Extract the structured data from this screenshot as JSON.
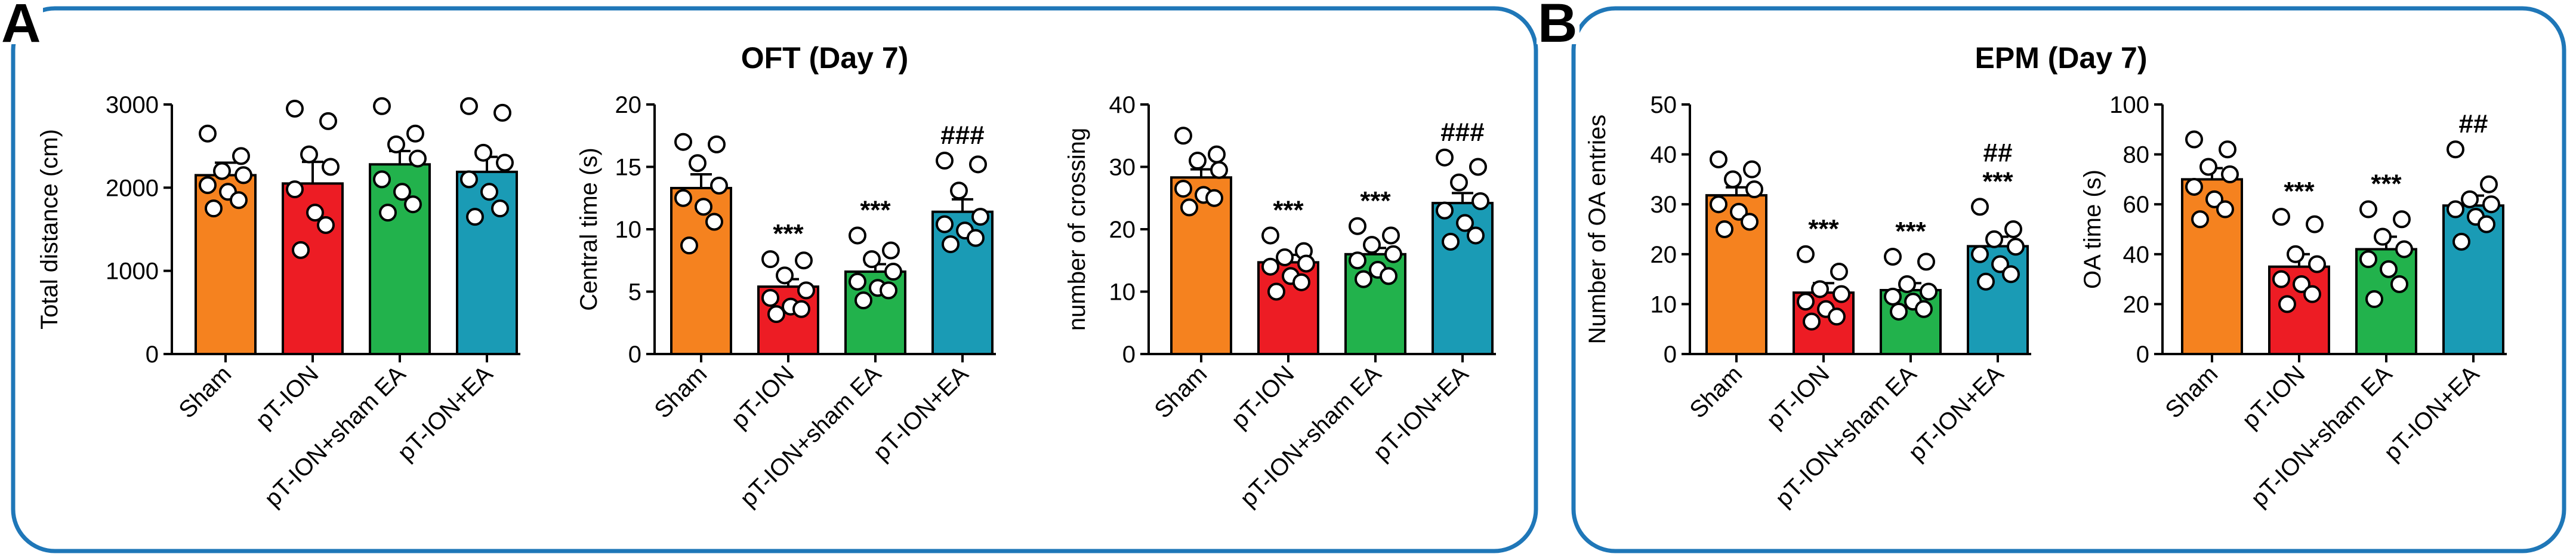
{
  "panels": {
    "A": {
      "letter": "A",
      "title": "OFT (Day 7)"
    },
    "B": {
      "letter": "B",
      "title": "EPM (Day 7)"
    }
  },
  "group_colors": [
    "#F5821F",
    "#ED1C24",
    "#22B24C",
    "#1A9BB5"
  ],
  "categories": [
    "Sham",
    "pT-ION",
    "pT-ION+sham EA",
    "pT-ION+EA"
  ],
  "chart_data": [
    {
      "type": "bar",
      "panel": "A",
      "title": "",
      "ylabel": "Total distance (cm)",
      "ylim": [
        0,
        3000
      ],
      "yticks": [
        0,
        1000,
        2000,
        3000
      ],
      "categories": [
        "Sham",
        "pT-ION",
        "pT-ION+sham EA",
        "pT-ION+EA"
      ],
      "values": [
        2150,
        2050,
        2280,
        2190
      ],
      "sem": [
        150,
        260,
        160,
        180
      ],
      "points": [
        [
          2650,
          2380,
          2200,
          2150,
          2030,
          1950,
          1850,
          1750
        ],
        [
          2950,
          2800,
          2400,
          2250,
          1980,
          1700,
          1550,
          1250
        ],
        [
          2980,
          2650,
          2520,
          2350,
          2100,
          1950,
          1800,
          1700
        ],
        [
          2980,
          2900,
          2420,
          2300,
          2100,
          1950,
          1750,
          1650
        ]
      ],
      "annotations": [
        [
          "",
          ""
        ],
        [
          "",
          ""
        ],
        [
          "",
          ""
        ],
        [
          "",
          ""
        ]
      ]
    },
    {
      "type": "bar",
      "panel": "A",
      "title": "",
      "ylabel": "Central time (s)",
      "ylim": [
        0,
        20
      ],
      "yticks": [
        0,
        5,
        10,
        15,
        20
      ],
      "categories": [
        "Sham",
        "pT-ION",
        "pT-ION+sham EA",
        "pT-ION+EA"
      ],
      "values": [
        13.3,
        5.4,
        6.6,
        11.4
      ],
      "sem": [
        1.1,
        0.6,
        0.6,
        1.0
      ],
      "points": [
        [
          17.0,
          16.8,
          15.3,
          13.5,
          12.5,
          11.8,
          10.6,
          8.7
        ],
        [
          7.6,
          7.5,
          6.3,
          5.1,
          4.5,
          3.8,
          3.6,
          3.2
        ],
        [
          9.5,
          8.3,
          7.6,
          6.6,
          5.8,
          5.3,
          5.1,
          4.3
        ],
        [
          15.5,
          15.2,
          13.1,
          11.0,
          10.4,
          9.9,
          9.3,
          8.8
        ]
      ],
      "annotations": [
        [
          "",
          ""
        ],
        [
          "***",
          ""
        ],
        [
          "***",
          ""
        ],
        [
          "",
          "###"
        ]
      ]
    },
    {
      "type": "bar",
      "panel": "A",
      "title": "",
      "ylabel": "number of crossing",
      "ylim": [
        0,
        40
      ],
      "yticks": [
        0,
        10,
        20,
        30,
        40
      ],
      "categories": [
        "Sham",
        "pT-ION",
        "pT-ION+sham EA",
        "pT-ION+EA"
      ],
      "values": [
        28.3,
        14.7,
        16.0,
        24.2
      ],
      "sem": [
        1.3,
        1.2,
        1.0,
        1.6
      ],
      "points": [
        [
          35.0,
          32.0,
          31.0,
          29.5,
          26.5,
          25.5,
          25.0,
          23.5
        ],
        [
          19.0,
          16.5,
          15.5,
          14.5,
          14.0,
          12.5,
          11.5,
          10.0
        ],
        [
          20.5,
          19.0,
          17.5,
          16.0,
          15.0,
          13.5,
          12.5,
          12.0
        ],
        [
          31.5,
          30.0,
          27.5,
          24.5,
          23.0,
          21.0,
          19.0,
          18.0
        ]
      ],
      "annotations": [
        [
          "",
          ""
        ],
        [
          "***",
          ""
        ],
        [
          "***",
          ""
        ],
        [
          "",
          "###"
        ]
      ]
    },
    {
      "type": "bar",
      "panel": "B",
      "title": "",
      "ylabel": "Number of OA entries",
      "ylim": [
        0,
        50
      ],
      "yticks": [
        0,
        10,
        20,
        30,
        40,
        50
      ],
      "categories": [
        "Sham",
        "pT-ION",
        "pT-ION+sham EA",
        "pT-ION+EA"
      ],
      "values": [
        31.8,
        12.3,
        12.8,
        21.6
      ],
      "sem": [
        1.6,
        1.9,
        1.4,
        1.9
      ],
      "points": [
        [
          39.0,
          37.0,
          35.0,
          33.0,
          30.0,
          28.5,
          26.5,
          25.0
        ],
        [
          20.0,
          16.5,
          13.0,
          12.0,
          10.5,
          9.0,
          7.5,
          6.5
        ],
        [
          19.5,
          18.5,
          14.0,
          12.5,
          11.5,
          10.5,
          9.0,
          8.5
        ],
        [
          29.5,
          25.0,
          23.0,
          21.5,
          20.0,
          18.0,
          16.0,
          14.5
        ]
      ],
      "annotations": [
        [
          "",
          ""
        ],
        [
          "***",
          ""
        ],
        [
          "***",
          ""
        ],
        [
          "***",
          "##"
        ]
      ]
    },
    {
      "type": "bar",
      "panel": "B",
      "title": "",
      "ylabel": "OA time (s)",
      "ylim": [
        0,
        100
      ],
      "yticks": [
        0,
        20,
        40,
        60,
        80,
        100
      ],
      "categories": [
        "Sham",
        "pT-ION",
        "pT-ION+sham EA",
        "pT-ION+EA"
      ],
      "values": [
        70.0,
        35.0,
        42.0,
        59.5
      ],
      "sem": [
        4.5,
        5.0,
        5.0,
        4.0
      ],
      "points": [
        [
          86.0,
          82.0,
          75.0,
          72.0,
          67.0,
          62.0,
          58.0,
          54.0
        ],
        [
          55.0,
          52.0,
          40.0,
          36.0,
          30.0,
          28.0,
          24.0,
          20.0
        ],
        [
          58.0,
          54.0,
          47.0,
          42.0,
          38.0,
          34.0,
          28.0,
          22.0
        ],
        [
          82.0,
          68.0,
          62.0,
          60.0,
          58.0,
          55.0,
          52.0,
          45.0
        ]
      ],
      "annotations": [
        [
          "",
          ""
        ],
        [
          "***",
          ""
        ],
        [
          "***",
          ""
        ],
        [
          "",
          "##"
        ]
      ]
    }
  ]
}
